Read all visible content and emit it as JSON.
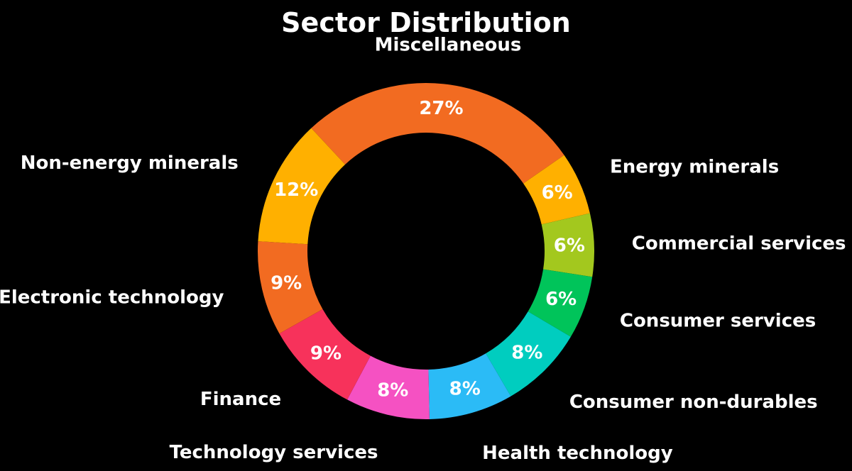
{
  "chart_data": {
    "type": "pie",
    "title": "Sector Distribution",
    "donut": true,
    "slices": [
      {
        "label": "Miscellaneous",
        "value": 27,
        "pct_label": "27%",
        "color": "#F26B21"
      },
      {
        "label": "Energy minerals",
        "value": 6,
        "pct_label": "6%",
        "color": "#FFB000"
      },
      {
        "label": "Commercial services",
        "value": 6,
        "pct_label": "6%",
        "color": "#A3C81E"
      },
      {
        "label": "Consumer services",
        "value": 6,
        "pct_label": "6%",
        "color": "#00C45A"
      },
      {
        "label": "Consumer non-durables",
        "value": 8,
        "pct_label": "8%",
        "color": "#00CDBF"
      },
      {
        "label": "Health technology",
        "value": 8,
        "pct_label": "8%",
        "color": "#2BBBF6"
      },
      {
        "label": "Technology services",
        "value": 8,
        "pct_label": "8%",
        "color": "#F551C2"
      },
      {
        "label": "Finance",
        "value": 9,
        "pct_label": "9%",
        "color": "#F7325B"
      },
      {
        "label": "Electronic technology",
        "value": 9,
        "pct_label": "9%",
        "color": "#F26B21"
      },
      {
        "label": "Non-energy minerals",
        "value": 12,
        "pct_label": "12%",
        "color": "#FFB000"
      }
    ]
  }
}
